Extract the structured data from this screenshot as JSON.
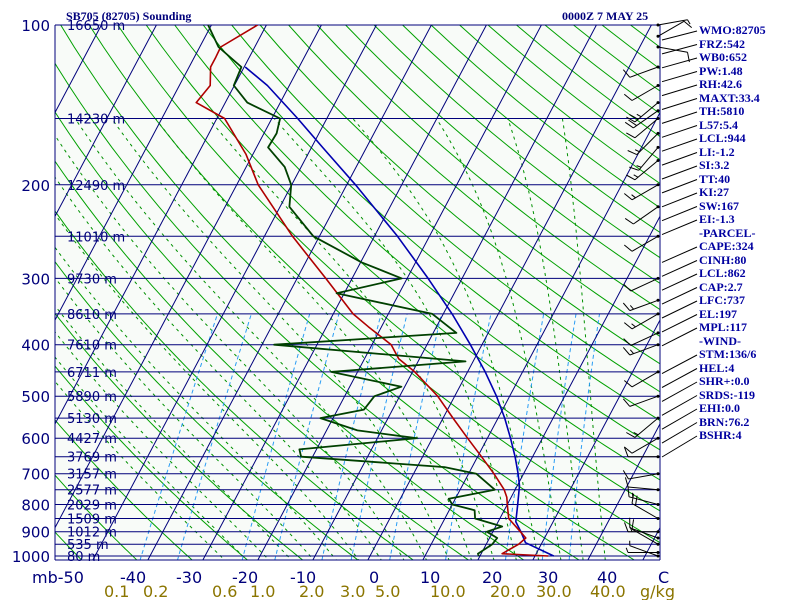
{
  "header": {
    "station": "SB705 (82705) Sounding",
    "time": "0000Z  7 MAY 25"
  },
  "indices": [
    "WMO:82705",
    "FRZ:542",
    "WB0:652",
    "PW:1.48",
    "RH:42.6",
    "MAXT:33.4",
    "TH:5810",
    "L57:5.4",
    "LCL:944",
    "LI:-1.2",
    "SI:3.2",
    "TT:40",
    "KI:27",
    "SW:167",
    "EI:-1.3",
    "-PARCEL-",
    "CAPE:324",
    "CINH:80",
    "LCL:862",
    "CAP:2.7",
    "LFC:737",
    "EL:197",
    "MPL:117",
    "-WIND-",
    "STM:136/6",
    "HEL:4",
    "SHR+:0.0",
    "SRDS:-119",
    "EHI:0.0",
    "BRN:76.2",
    "BSHR:4"
  ],
  "colors": {
    "background": "#f8fbf8",
    "isobar": "#00007b",
    "isotherm": "#00007b",
    "dry_adiabat": "#00a000",
    "moist_adiabat": "#009000",
    "mixing_ratio": "#2a9df4",
    "temperature": "#b00000",
    "dewpoint": "#004000",
    "parcel": "#0000b0",
    "axis_text": "#00007b",
    "mixratio_text": "#8b7500",
    "wind": "#000000"
  },
  "chart_data": {
    "type": "skew-t log-p sounding",
    "title": "SB705 (82705) Sounding",
    "pressure_axis": {
      "unit": "mb",
      "ticks": [
        100,
        200,
        300,
        400,
        500,
        600,
        700,
        800,
        900,
        1000
      ],
      "range": [
        1020,
        100
      ],
      "scale": "log"
    },
    "temperature_axis": {
      "ticks": [
        -50,
        -40,
        -30,
        -20,
        -10,
        0,
        10,
        20,
        30,
        40
      ],
      "ticks_text": [
        "mb-50",
        "-40",
        "-30",
        "-20",
        "-10",
        "0",
        "10",
        "20",
        "30",
        "40",
        "C"
      ],
      "unit": "C",
      "range": [
        -50,
        50
      ]
    },
    "mixing_ratio_labels": [
      "0.1",
      "0.2",
      "0.6",
      "1.0",
      "2.0",
      "3.0",
      "5.0",
      "10.0",
      "20.0",
      "30.0",
      "40.0"
    ],
    "mixing_ratio_unit": "g/kg",
    "height_labels": [
      {
        "p": 100,
        "label": "16650 m"
      },
      {
        "p": 150,
        "label": "14230 m"
      },
      {
        "p": 200,
        "label": "12490 m"
      },
      {
        "p": 250,
        "label": "11010 m"
      },
      {
        "p": 300,
        "label": "9730 m"
      },
      {
        "p": 350,
        "label": "8610 m"
      },
      {
        "p": 400,
        "label": "7610 m"
      },
      {
        "p": 450,
        "label": "6711 m"
      },
      {
        "p": 500,
        "label": "5890 m"
      },
      {
        "p": 550,
        "label": "5130 m"
      },
      {
        "p": 600,
        "label": "4427 m"
      },
      {
        "p": 650,
        "label": "3769 m"
      },
      {
        "p": 700,
        "label": "3157 m"
      },
      {
        "p": 750,
        "label": "2577 m"
      },
      {
        "p": 800,
        "label": "2029 m"
      },
      {
        "p": 850,
        "label": "1509 m"
      },
      {
        "p": 900,
        "label": "1012 m"
      },
      {
        "p": 950,
        "label": "535 m"
      },
      {
        "p": 1000,
        "label": "80 m"
      }
    ],
    "temperature_profile": [
      [
        1000,
        32.4
      ],
      [
        990,
        23.8
      ],
      [
        950,
        25.9
      ],
      [
        925,
        26.6
      ],
      [
        900,
        25.0
      ],
      [
        850,
        21.6
      ],
      [
        800,
        20.0
      ],
      [
        775,
        19.2
      ],
      [
        750,
        18.0
      ],
      [
        700,
        14.6
      ],
      [
        650,
        10.7
      ],
      [
        600,
        6.4
      ],
      [
        550,
        1.8
      ],
      [
        500,
        -3.1
      ],
      [
        450,
        -9.6
      ],
      [
        425,
        -13.8
      ],
      [
        400,
        -16.5
      ],
      [
        370,
        -22.4
      ],
      [
        350,
        -26.4
      ],
      [
        300,
        -34.8
      ],
      [
        250,
        -44.9
      ],
      [
        200,
        -56.1
      ],
      [
        175,
        -61.3
      ],
      [
        150,
        -68.6
      ],
      [
        140,
        -75.3
      ],
      [
        130,
        -74.4
      ],
      [
        120,
        -76.1
      ],
      [
        115,
        -76.1
      ],
      [
        110,
        -76.2
      ],
      [
        100,
        -71.6
      ]
    ],
    "dewpoint_profile": [
      [
        1000,
        19.8
      ],
      [
        990,
        19.4
      ],
      [
        950,
        21.1
      ],
      [
        925,
        21.4
      ],
      [
        900,
        18.9
      ],
      [
        880,
        21.2
      ],
      [
        850,
        15.5
      ],
      [
        820,
        14.6
      ],
      [
        800,
        10.0
      ],
      [
        780,
        8.8
      ],
      [
        750,
        16.3
      ],
      [
        700,
        11.4
      ],
      [
        680,
        5.0
      ],
      [
        650,
        -22.1
      ],
      [
        630,
        -23.1
      ],
      [
        600,
        -2.9
      ],
      [
        580,
        -14.4
      ],
      [
        550,
        -22.3
      ],
      [
        530,
        -15.2
      ],
      [
        500,
        -14.6
      ],
      [
        480,
        -10.6
      ],
      [
        450,
        -24.8
      ],
      [
        430,
        -1.4
      ],
      [
        400,
        -37.8
      ],
      [
        380,
        -5.8
      ],
      [
        350,
        -12.0
      ],
      [
        320,
        -31.4
      ],
      [
        300,
        -21.0
      ],
      [
        280,
        -29.8
      ],
      [
        250,
        -41.1
      ],
      [
        220,
        -48.3
      ],
      [
        200,
        -50.1
      ],
      [
        185,
        -53.0
      ],
      [
        170,
        -57.9
      ],
      [
        160,
        -57.7
      ],
      [
        150,
        -58.5
      ],
      [
        140,
        -66.0
      ],
      [
        130,
        -70.1
      ],
      [
        120,
        -70.5
      ],
      [
        110,
        -76.6
      ],
      [
        100,
        -80.6
      ]
    ],
    "parcel_profile": [
      [
        1000,
        33.4
      ],
      [
        944,
        27.0
      ],
      [
        900,
        25.1
      ],
      [
        862,
        23.2
      ],
      [
        800,
        21.9
      ],
      [
        737,
        20.4
      ],
      [
        700,
        19.0
      ],
      [
        650,
        16.8
      ],
      [
        600,
        14.2
      ],
      [
        550,
        11.2
      ],
      [
        500,
        7.6
      ],
      [
        450,
        3.2
      ],
      [
        400,
        -2.1
      ],
      [
        350,
        -8.4
      ],
      [
        300,
        -16.2
      ],
      [
        250,
        -25.8
      ],
      [
        200,
        -38.4
      ],
      [
        170,
        -48.0
      ],
      [
        150,
        -55.3
      ],
      [
        130,
        -64.0
      ],
      [
        120,
        -69.8
      ]
    ],
    "wind_barbs": [
      {
        "p": 1000,
        "dir": 290,
        "spd": 5
      },
      {
        "p": 985,
        "dir": 270,
        "spd": 6
      },
      {
        "p": 950,
        "dir": 300,
        "spd": 12
      },
      {
        "p": 925,
        "dir": 290,
        "spd": 14
      },
      {
        "p": 900,
        "dir": 270,
        "spd": 18
      },
      {
        "p": 850,
        "dir": 300,
        "spd": 20
      },
      {
        "p": 800,
        "dir": 285,
        "spd": 15
      },
      {
        "p": 750,
        "dir": 275,
        "spd": 14
      },
      {
        "p": 700,
        "dir": 260,
        "spd": 12
      },
      {
        "p": 650,
        "dir": 270,
        "spd": 10
      },
      {
        "p": 600,
        "dir": 240,
        "spd": 12
      },
      {
        "p": 550,
        "dir": 230,
        "spd": 15
      },
      {
        "p": 500,
        "dir": 250,
        "spd": 14
      },
      {
        "p": 450,
        "dir": 240,
        "spd": 10
      },
      {
        "p": 400,
        "dir": 250,
        "spd": 16
      },
      {
        "p": 380,
        "dir": 245,
        "spd": 14
      },
      {
        "p": 350,
        "dir": 240,
        "spd": 18
      },
      {
        "p": 330,
        "dir": 250,
        "spd": 15
      },
      {
        "p": 300,
        "dir": 245,
        "spd": 14
      },
      {
        "p": 250,
        "dir": 240,
        "spd": 12
      },
      {
        "p": 220,
        "dir": 235,
        "spd": 14
      },
      {
        "p": 200,
        "dir": 240,
        "spd": 15
      },
      {
        "p": 180,
        "dir": 230,
        "spd": 18
      },
      {
        "p": 170,
        "dir": 220,
        "spd": 16
      },
      {
        "p": 160,
        "dir": 225,
        "spd": 15
      },
      {
        "p": 150,
        "dir": 230,
        "spd": 14
      },
      {
        "p": 145,
        "dir": 235,
        "spd": 20
      },
      {
        "p": 140,
        "dir": 230,
        "spd": 25
      },
      {
        "p": 130,
        "dir": 240,
        "spd": 12
      },
      {
        "p": 120,
        "dir": 250,
        "spd": 10
      },
      {
        "p": 110,
        "dir": 100,
        "spd": 12
      },
      {
        "p": 105,
        "dir": 60,
        "spd": 10
      },
      {
        "p": 100,
        "dir": 80,
        "spd": 8
      }
    ]
  }
}
